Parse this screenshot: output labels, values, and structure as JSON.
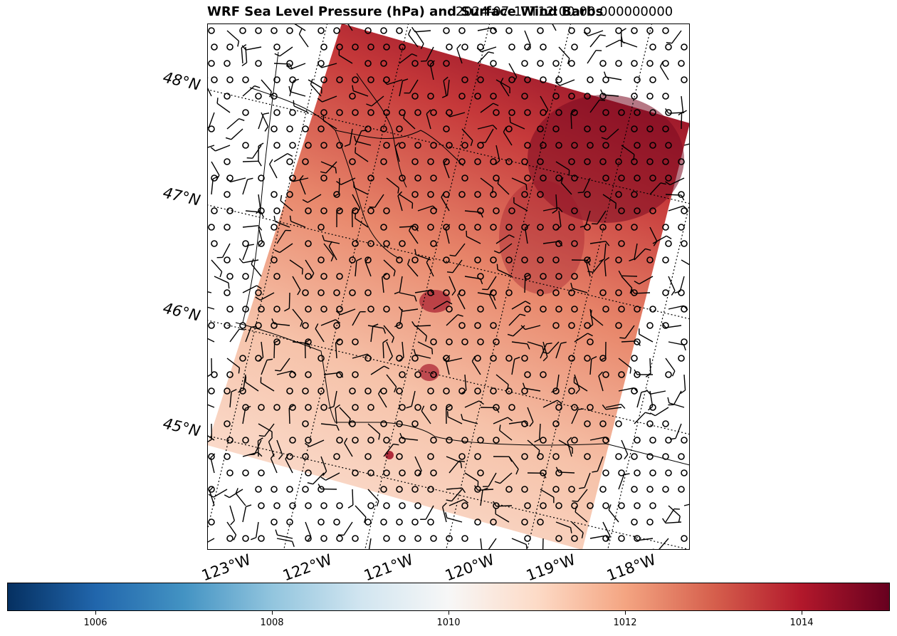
{
  "title": {
    "main": "WRF Sea Level Pressure (hPa) and Surface Wind Barbs",
    "time": "2024-07-17T12:00:00.000000000"
  },
  "lat_labels": [
    "48°N",
    "47°N",
    "46°N",
    "45°N"
  ],
  "lon_labels": [
    "123°W",
    "122°W",
    "121°W",
    "120°W",
    "119°W",
    "118°W"
  ],
  "colorbar": {
    "ticks": [
      "1006",
      "1008",
      "1010",
      "1012",
      "1014"
    ],
    "range": [
      1005,
      1015
    ],
    "colormap": "RdBu_r",
    "colors": [
      "#053061",
      "#2166ac",
      "#4393c3",
      "#92c5de",
      "#d1e5f0",
      "#f7f7f7",
      "#fddbc7",
      "#f4a582",
      "#d6604d",
      "#b2182b",
      "#67001f"
    ]
  },
  "map": {
    "projection": "rotated domain",
    "field": "sea level pressure",
    "overlays": [
      "wind barbs",
      "coastlines",
      "state borders",
      "dotted graticule"
    ]
  }
}
